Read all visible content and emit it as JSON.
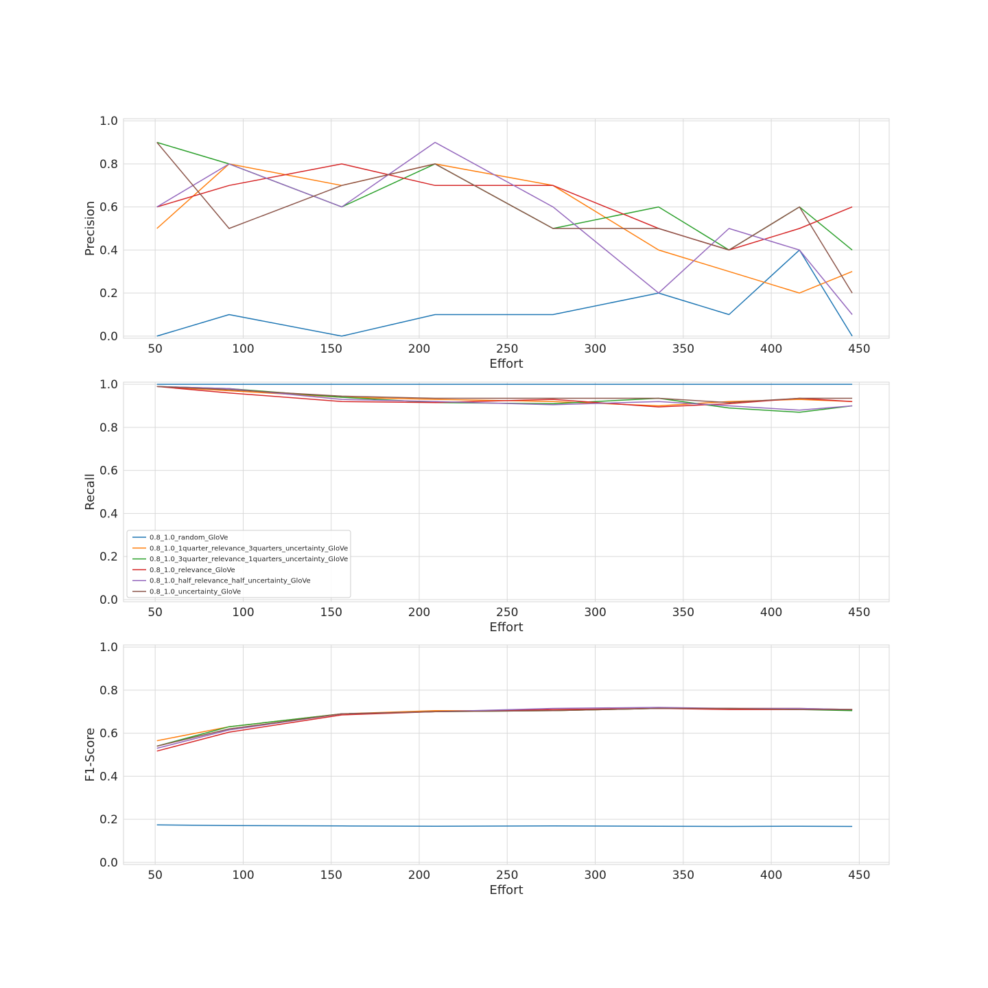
{
  "chart_data": [
    {
      "type": "line",
      "xlabel": "Effort",
      "ylabel": "Precision",
      "xlim": [
        32,
        467
      ],
      "ylim": [
        -0.01,
        1.01
      ],
      "xticks": [
        "50",
        "100",
        "150",
        "200",
        "250",
        "300",
        "350",
        "400",
        "450"
      ],
      "yticks": [
        "0.0",
        "0.2",
        "0.4",
        "0.6",
        "0.8",
        "1.0"
      ],
      "grid": true,
      "x": [
        51,
        92,
        156,
        209,
        276,
        336,
        376,
        416,
        446
      ],
      "series": [
        {
          "color": "#1f77b4",
          "values": [
            0.0,
            0.1,
            0.0,
            0.1,
            0.1,
            0.2,
            0.1,
            0.4,
            0.0
          ]
        },
        {
          "color": "#ff7f0e",
          "values": [
            0.5,
            0.8,
            0.7,
            0.8,
            0.7,
            0.4,
            0.3,
            0.2,
            0.3
          ]
        },
        {
          "color": "#2ca02c",
          "values": [
            0.9,
            0.8,
            0.6,
            0.8,
            0.5,
            0.6,
            0.4,
            0.6,
            0.4
          ]
        },
        {
          "color": "#d62728",
          "values": [
            0.6,
            0.7,
            0.8,
            0.7,
            0.7,
            0.5,
            0.4,
            0.5,
            0.6
          ]
        },
        {
          "color": "#9467bd",
          "values": [
            0.6,
            0.8,
            0.6,
            0.9,
            0.6,
            0.2,
            0.5,
            0.4,
            0.1
          ]
        },
        {
          "color": "#8c564b",
          "values": [
            0.9,
            0.5,
            0.7,
            0.8,
            0.5,
            0.5,
            0.4,
            0.6,
            0.2
          ]
        }
      ]
    },
    {
      "type": "line",
      "xlabel": "Effort",
      "ylabel": "Recall",
      "xlim": [
        32,
        467
      ],
      "ylim": [
        -0.01,
        1.01
      ],
      "xticks": [
        "50",
        "100",
        "150",
        "200",
        "250",
        "300",
        "350",
        "400",
        "450"
      ],
      "yticks": [
        "0.0",
        "0.2",
        "0.4",
        "0.6",
        "0.8",
        "1.0"
      ],
      "grid": true,
      "legend": "lower-left",
      "x": [
        51,
        92,
        156,
        209,
        276,
        336,
        376,
        416,
        446
      ],
      "series": [
        {
          "name": "0.8_1.0_random_GloVe",
          "color": "#1f77b4",
          "values": [
            1.0,
            1.0,
            1.0,
            1.0,
            1.0,
            1.0,
            1.0,
            1.0,
            1.0
          ]
        },
        {
          "name": "0.8_1.0_1quarter_relevance_3quarters_uncertainty_GloVe",
          "color": "#ff7f0e",
          "values": [
            0.99,
            0.97,
            0.94,
            0.93,
            0.92,
            0.9,
            0.92,
            0.93,
            0.92
          ]
        },
        {
          "name": "0.8_1.0_3quarter_relevance_1quarters_uncertainty_GloVe",
          "color": "#2ca02c",
          "values": [
            0.99,
            0.98,
            0.94,
            0.915,
            0.91,
            0.935,
            0.89,
            0.87,
            0.9
          ]
        },
        {
          "name": "0.8_1.0_relevance_GloVe",
          "color": "#d62728",
          "values": [
            0.99,
            0.96,
            0.92,
            0.915,
            0.93,
            0.895,
            0.91,
            0.935,
            0.92
          ]
        },
        {
          "name": "0.8_1.0_half_relevance_half_uncertainty_GloVe",
          "color": "#9467bd",
          "values": [
            0.99,
            0.98,
            0.93,
            0.92,
            0.905,
            0.92,
            0.9,
            0.88,
            0.9
          ]
        },
        {
          "name": "0.8_1.0_uncertainty_GloVe",
          "color": "#8c564b",
          "values": [
            0.99,
            0.975,
            0.945,
            0.935,
            0.935,
            0.935,
            0.915,
            0.935,
            0.935
          ]
        }
      ]
    },
    {
      "type": "line",
      "xlabel": "Effort",
      "ylabel": "F1-Score",
      "xlim": [
        32,
        467
      ],
      "ylim": [
        -0.01,
        1.01
      ],
      "xticks": [
        "50",
        "100",
        "150",
        "200",
        "250",
        "300",
        "350",
        "400",
        "450"
      ],
      "yticks": [
        "0.0",
        "0.2",
        "0.4",
        "0.6",
        "0.8",
        "1.0"
      ],
      "grid": true,
      "x": [
        51,
        92,
        156,
        209,
        276,
        336,
        376,
        416,
        446
      ],
      "series": [
        {
          "color": "#1f77b4",
          "values": [
            0.174,
            0.171,
            0.169,
            0.168,
            0.169,
            0.168,
            0.167,
            0.168,
            0.167
          ]
        },
        {
          "color": "#ff7f0e",
          "values": [
            0.565,
            0.63,
            0.69,
            0.705,
            0.705,
            0.715,
            0.715,
            0.715,
            0.71
          ]
        },
        {
          "color": "#2ca02c",
          "values": [
            0.54,
            0.63,
            0.69,
            0.7,
            0.705,
            0.715,
            0.715,
            0.71,
            0.705
          ]
        },
        {
          "color": "#d62728",
          "values": [
            0.517,
            0.605,
            0.685,
            0.7,
            0.71,
            0.715,
            0.71,
            0.71,
            0.71
          ]
        },
        {
          "color": "#9467bd",
          "values": [
            0.53,
            0.615,
            0.69,
            0.7,
            0.715,
            0.72,
            0.715,
            0.715,
            0.71
          ]
        },
        {
          "color": "#8c564b",
          "values": [
            0.54,
            0.62,
            0.69,
            0.7,
            0.705,
            0.715,
            0.715,
            0.71,
            0.71
          ]
        }
      ]
    }
  ]
}
